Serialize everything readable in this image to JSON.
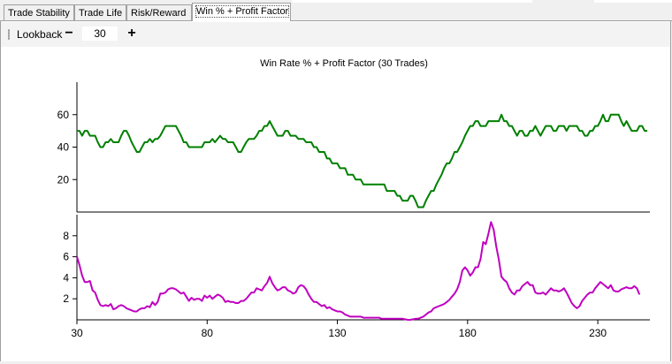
{
  "tabs": [
    {
      "label": "Trade Stability",
      "active": false
    },
    {
      "label": "Trade Life",
      "active": false
    },
    {
      "label": "Risk/Reward",
      "active": false
    },
    {
      "label": "Win % + Profit Factor",
      "active": true
    }
  ],
  "toolbar": {
    "lookback_label": "Lookback",
    "minus_label": "−",
    "plus_label": "+",
    "lookback_value": "30"
  },
  "colors": {
    "win_rate": "#008000",
    "profit_factor": "#c000c0"
  },
  "chart_data": {
    "type": "line",
    "title": "Win Rate % + Profit Factor (30 Trades)",
    "xlabel": "",
    "x_ticks": [
      30,
      80,
      130,
      180,
      230
    ],
    "xlim": [
      30,
      250
    ],
    "panels": [
      {
        "ylabel": "",
        "ylim": [
          0,
          80
        ],
        "y_ticks": [
          20,
          40,
          60
        ],
        "series": [
          {
            "x_start": 30,
            "values": [
              50,
              50,
              47,
              50,
              50,
              47,
              47,
              47,
              43,
              40,
              40,
              43,
              43,
              45,
              43,
              43,
              43,
              47,
              50,
              50,
              47,
              43,
              40,
              37,
              37,
              40,
              43,
              43,
              45,
              43,
              45,
              45,
              47,
              50,
              53,
              53,
              53,
              53,
              53,
              50,
              47,
              43,
              43,
              40,
              40,
              40,
              40,
              40,
              40,
              43,
              43,
              43,
              45,
              43,
              45,
              47,
              45,
              45,
              43,
              43,
              43,
              40,
              37,
              37,
              40,
              43,
              45,
              45,
              45,
              47,
              50,
              50,
              53,
              53,
              56,
              53,
              50,
              47,
              47,
              47,
              50,
              50,
              47,
              47,
              47,
              45,
              45,
              45,
              43,
              43,
              43,
              40,
              40,
              37,
              37,
              37,
              33,
              33,
              30,
              30,
              30,
              27,
              27,
              27,
              23,
              23,
              23,
              20,
              20,
              20,
              17,
              17,
              17,
              17,
              17,
              17,
              17,
              17,
              17,
              13,
              13,
              13,
              13,
              10,
              10,
              7,
              7,
              7,
              10,
              10,
              7,
              3,
              3,
              3,
              7,
              10,
              13,
              13,
              17,
              20,
              23,
              27,
              30,
              30,
              33,
              37,
              37,
              40,
              43,
              47,
              50,
              53,
              53,
              56,
              56,
              53,
              53,
              53,
              56,
              56,
              56,
              56,
              56,
              60,
              56,
              56,
              53,
              53,
              50,
              47,
              50,
              50,
              47,
              47,
              50,
              50,
              53,
              50,
              47,
              50,
              53,
              53,
              53,
              50,
              50,
              53,
              53,
              53,
              50,
              53,
              53,
              53,
              53,
              50,
              50,
              47,
              47,
              50,
              50,
              53,
              53,
              56,
              60,
              56,
              56,
              60,
              60,
              60,
              60,
              56,
              53,
              56,
              53,
              50,
              50,
              50,
              53,
              53,
              50,
              50
            ]
          }
        ]
      },
      {
        "ylabel": "",
        "ylim": [
          0,
          10
        ],
        "y_ticks": [
          2,
          4,
          6,
          8
        ],
        "series": [
          {
            "x_start": 30,
            "values": [
              6.0,
              5.2,
              4.2,
              3.6,
              3.6,
              3.7,
              2.8,
              2.6,
              1.9,
              1.4,
              1.3,
              1.4,
              1.3,
              1.5,
              1.0,
              1.1,
              1.3,
              1.4,
              1.3,
              1.1,
              1.0,
              0.9,
              0.8,
              0.8,
              1.0,
              1.1,
              1.1,
              1.3,
              1.2,
              1.7,
              1.4,
              1.7,
              2.5,
              2.5,
              2.6,
              2.9,
              3.0,
              3.0,
              2.9,
              2.7,
              2.5,
              2.6,
              2.2,
              1.8,
              2.1,
              1.9,
              2.0,
              2.0,
              1.8,
              2.3,
              2.1,
              2.3,
              2.0,
              2.2,
              2.4,
              2.3,
              2.1,
              1.7,
              1.8,
              1.7,
              1.7,
              1.6,
              1.6,
              1.8,
              1.8,
              2.0,
              2.3,
              2.6,
              2.6,
              3.0,
              2.9,
              2.8,
              3.2,
              3.5,
              4.1,
              3.5,
              3.1,
              2.8,
              2.9,
              3.1,
              3.1,
              2.8,
              2.7,
              2.5,
              2.6,
              3.1,
              3.3,
              3.2,
              2.9,
              2.4,
              2.0,
              1.7,
              1.7,
              1.5,
              1.3,
              1.4,
              1.1,
              1.2,
              1.0,
              0.9,
              0.8,
              0.8,
              0.7,
              0.5,
              0.4,
              0.3,
              0.3,
              0.3,
              0.3,
              0.3,
              0.2,
              0.2,
              0.2,
              0.2,
              0.2,
              0.2,
              0.2,
              0.1,
              0.1,
              0.1,
              0.1,
              0.1,
              0.1,
              0.1,
              0.1,
              0.1,
              0.05,
              0.0,
              0.0,
              0.05,
              0.1,
              0.1,
              0.2,
              0.3,
              0.5,
              0.7,
              0.8,
              1.1,
              1.2,
              1.3,
              1.4,
              1.5,
              1.7,
              1.9,
              2.2,
              2.5,
              2.9,
              3.6,
              4.7,
              5.0,
              4.7,
              4.2,
              4.5,
              5.0,
              5.0,
              5.8,
              7.4,
              7.2,
              8.2,
              9.3,
              8.6,
              7.0,
              5.7,
              4.1,
              3.8,
              3.6,
              3.0,
              2.6,
              2.4,
              2.8,
              2.8,
              3.2,
              3.4,
              3.6,
              3.3,
              3.3,
              2.6,
              2.5,
              2.5,
              2.6,
              2.4,
              2.7,
              3.0,
              2.8,
              2.8,
              2.7,
              2.8,
              3.0,
              2.6,
              2.1,
              1.6,
              1.3,
              1.1,
              1.3,
              1.8,
              2.1,
              2.4,
              2.6,
              2.6,
              3.0,
              3.3,
              3.6,
              3.4,
              3.2,
              3.0,
              3.3,
              2.8,
              2.7,
              2.7,
              2.9,
              3.0,
              3.1,
              3.0,
              3.0,
              3.2,
              3.0,
              2.4
            ]
          }
        ]
      }
    ]
  }
}
